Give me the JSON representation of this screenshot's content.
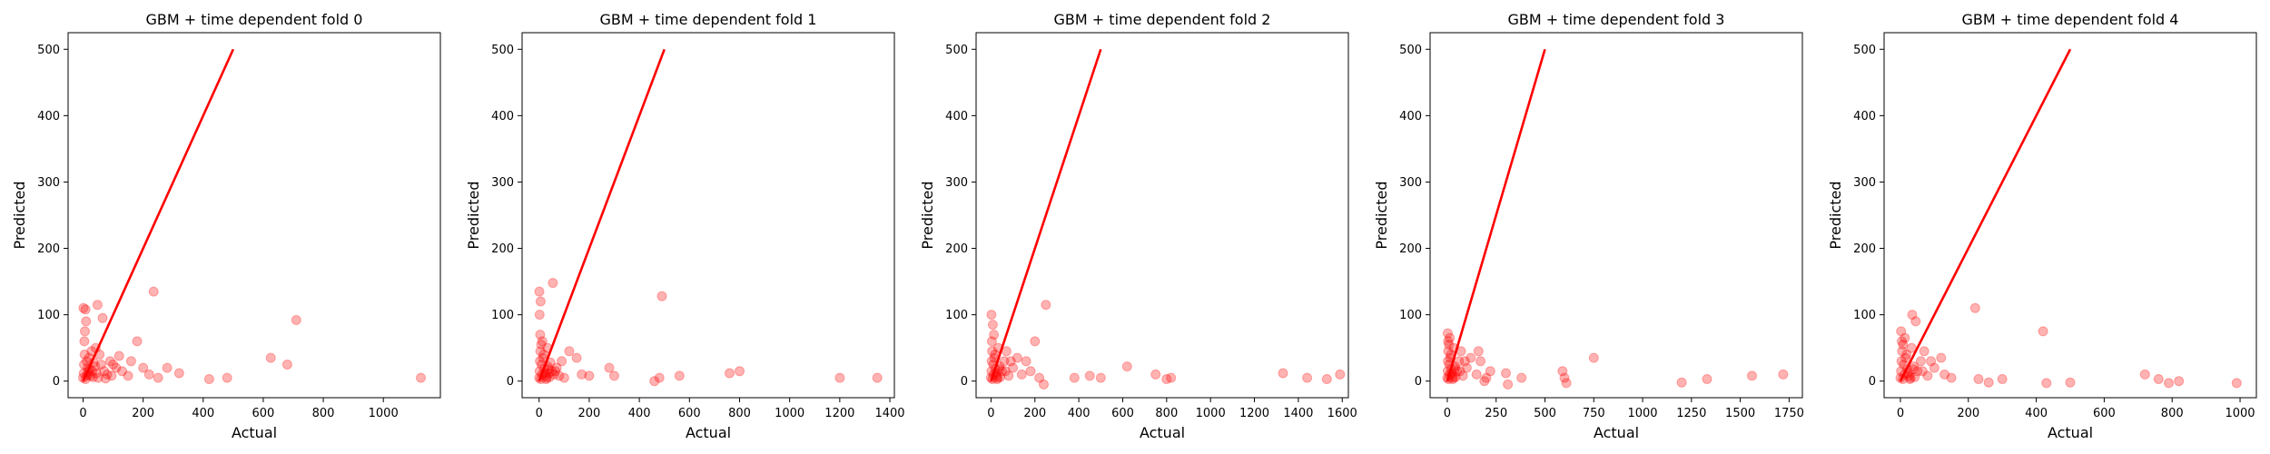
{
  "chart_data": [
    {
      "type": "scatter",
      "title": "GBM + time dependent fold 0",
      "xlabel": "Actual",
      "ylabel": "Predicted",
      "xlim": [
        -50,
        1190
      ],
      "ylim": [
        -25,
        525
      ],
      "xticks": [
        0,
        200,
        400,
        600,
        800,
        1000
      ],
      "yticks": [
        0,
        100,
        200,
        300,
        400,
        500
      ],
      "reference_line": [
        [
          0,
          0
        ],
        [
          500,
          500
        ]
      ],
      "color": "#ff0000",
      "series": [
        {
          "points": [
            [
              0,
              5
            ],
            [
              2,
              12
            ],
            [
              3,
              25
            ],
            [
              5,
              40
            ],
            [
              4,
              60
            ],
            [
              6,
              75
            ],
            [
              1,
              110
            ],
            [
              8,
              108
            ],
            [
              10,
              90
            ],
            [
              12,
              30
            ],
            [
              15,
              20
            ],
            [
              18,
              10
            ],
            [
              20,
              35
            ],
            [
              22,
              18
            ],
            [
              25,
              8
            ],
            [
              30,
              15
            ],
            [
              35,
              28
            ],
            [
              40,
              22
            ],
            [
              45,
              12
            ],
            [
              50,
              5
            ],
            [
              55,
              40
            ],
            [
              60,
              25
            ],
            [
              70,
              15
            ],
            [
              80,
              10
            ],
            [
              90,
              30
            ],
            [
              100,
              25
            ],
            [
              110,
              20
            ],
            [
              130,
              15
            ],
            [
              160,
              30
            ],
            [
              180,
              60
            ],
            [
              200,
              20
            ],
            [
              220,
              10
            ],
            [
              235,
              135
            ],
            [
              250,
              5
            ],
            [
              280,
              20
            ],
            [
              320,
              12
            ],
            [
              420,
              3
            ],
            [
              480,
              5
            ],
            [
              625,
              35
            ],
            [
              680,
              25
            ],
            [
              710,
              92
            ],
            [
              1125,
              5
            ],
            [
              8,
              3
            ],
            [
              12,
              8
            ],
            [
              16,
              14
            ],
            [
              28,
              45
            ],
            [
              33,
              6
            ],
            [
              42,
              50
            ],
            [
              48,
              115
            ],
            [
              65,
              95
            ],
            [
              75,
              4
            ],
            [
              95,
              8
            ],
            [
              120,
              38
            ],
            [
              150,
              8
            ]
          ]
        }
      ]
    },
    {
      "type": "scatter",
      "title": "GBM + time dependent fold 1",
      "xlabel": "Actual",
      "ylabel": "Predicted",
      "xlim": [
        -68,
        1418
      ],
      "ylim": [
        -25,
        525
      ],
      "xticks": [
        0,
        200,
        400,
        600,
        800,
        1000,
        1200,
        1400
      ],
      "yticks": [
        0,
        100,
        200,
        300,
        400,
        500
      ],
      "reference_line": [
        [
          0,
          0
        ],
        [
          500,
          500
        ]
      ],
      "color": "#ff0000",
      "series": [
        {
          "points": [
            [
              0,
              5
            ],
            [
              2,
              15
            ],
            [
              3,
              30
            ],
            [
              5,
              45
            ],
            [
              4,
              70
            ],
            [
              2,
              100
            ],
            [
              1,
              135
            ],
            [
              6,
              120
            ],
            [
              8,
              55
            ],
            [
              10,
              25
            ],
            [
              12,
              10
            ],
            [
              15,
              35
            ],
            [
              20,
              18
            ],
            [
              25,
              8
            ],
            [
              30,
              5
            ],
            [
              35,
              22
            ],
            [
              40,
              12
            ],
            [
              45,
              28
            ],
            [
              50,
              15
            ],
            [
              55,
              148
            ],
            [
              60,
              10
            ],
            [
              70,
              20
            ],
            [
              80,
              8
            ],
            [
              100,
              5
            ],
            [
              120,
              45
            ],
            [
              150,
              35
            ],
            [
              170,
              10
            ],
            [
              200,
              8
            ],
            [
              280,
              20
            ],
            [
              300,
              8
            ],
            [
              460,
              0
            ],
            [
              480,
              5
            ],
            [
              490,
              128
            ],
            [
              560,
              8
            ],
            [
              760,
              12
            ],
            [
              800,
              15
            ],
            [
              1200,
              5
            ],
            [
              1350,
              5
            ],
            [
              7,
              3
            ],
            [
              13,
              60
            ],
            [
              18,
              40
            ],
            [
              22,
              12
            ],
            [
              28,
              3
            ],
            [
              33,
              50
            ],
            [
              38,
              18
            ],
            [
              42,
              6
            ],
            [
              65,
              15
            ],
            [
              90,
              30
            ]
          ]
        }
      ]
    },
    {
      "type": "scatter",
      "title": "GBM + time dependent fold 2",
      "xlabel": "Actual",
      "ylabel": "Predicted",
      "xlim": [
        -68,
        1628
      ],
      "ylim": [
        -25,
        525
      ],
      "xticks": [
        0,
        200,
        400,
        600,
        800,
        1000,
        1200,
        1400,
        1600
      ],
      "yticks": [
        0,
        100,
        200,
        300,
        400,
        500
      ],
      "reference_line": [
        [
          0,
          0
        ],
        [
          500,
          500
        ]
      ],
      "color": "#ff0000",
      "series": [
        {
          "points": [
            [
              0,
              5
            ],
            [
              2,
              15
            ],
            [
              3,
              30
            ],
            [
              5,
              45
            ],
            [
              4,
              60
            ],
            [
              2,
              100
            ],
            [
              8,
              85
            ],
            [
              10,
              25
            ],
            [
              12,
              10
            ],
            [
              15,
              35
            ],
            [
              20,
              18
            ],
            [
              25,
              8
            ],
            [
              30,
              5
            ],
            [
              40,
              22
            ],
            [
              50,
              15
            ],
            [
              60,
              30
            ],
            [
              70,
              45
            ],
            [
              80,
              8
            ],
            [
              100,
              20
            ],
            [
              120,
              35
            ],
            [
              140,
              10
            ],
            [
              160,
              30
            ],
            [
              180,
              15
            ],
            [
              200,
              60
            ],
            [
              220,
              5
            ],
            [
              240,
              -5
            ],
            [
              250,
              115
            ],
            [
              380,
              5
            ],
            [
              450,
              8
            ],
            [
              500,
              5
            ],
            [
              620,
              22
            ],
            [
              750,
              10
            ],
            [
              800,
              3
            ],
            [
              820,
              5
            ],
            [
              1330,
              12
            ],
            [
              1440,
              5
            ],
            [
              1530,
              3
            ],
            [
              1590,
              10
            ],
            [
              7,
              3
            ],
            [
              13,
              70
            ],
            [
              18,
              40
            ],
            [
              22,
              12
            ],
            [
              28,
              3
            ],
            [
              33,
              50
            ],
            [
              38,
              18
            ],
            [
              42,
              6
            ],
            [
              65,
              15
            ],
            [
              90,
              30
            ]
          ]
        }
      ]
    },
    {
      "type": "scatter",
      "title": "GBM + time dependent fold 3",
      "xlabel": "Actual",
      "ylabel": "Predicted",
      "xlim": [
        -88,
        1818
      ],
      "ylim": [
        -25,
        525
      ],
      "xticks": [
        0,
        250,
        500,
        750,
        1000,
        1250,
        1500,
        1750
      ],
      "yticks": [
        0,
        100,
        200,
        300,
        400,
        500
      ],
      "reference_line": [
        [
          0,
          0
        ],
        [
          500,
          500
        ]
      ],
      "color": "#ff0000",
      "series": [
        {
          "points": [
            [
              0,
              5
            ],
            [
              2,
              15
            ],
            [
              3,
              30
            ],
            [
              5,
              45
            ],
            [
              4,
              60
            ],
            [
              2,
              72
            ],
            [
              8,
              55
            ],
            [
              10,
              25
            ],
            [
              12,
              10
            ],
            [
              15,
              35
            ],
            [
              20,
              18
            ],
            [
              25,
              8
            ],
            [
              30,
              5
            ],
            [
              40,
              22
            ],
            [
              50,
              15
            ],
            [
              60,
              30
            ],
            [
              70,
              45
            ],
            [
              80,
              8
            ],
            [
              100,
              20
            ],
            [
              120,
              35
            ],
            [
              150,
              10
            ],
            [
              170,
              30
            ],
            [
              200,
              5
            ],
            [
              220,
              15
            ],
            [
              300,
              12
            ],
            [
              310,
              -5
            ],
            [
              380,
              5
            ],
            [
              590,
              15
            ],
            [
              600,
              5
            ],
            [
              610,
              -3
            ],
            [
              750,
              35
            ],
            [
              1200,
              -2
            ],
            [
              1330,
              3
            ],
            [
              1560,
              8
            ],
            [
              1720,
              10
            ],
            [
              7,
              3
            ],
            [
              13,
              65
            ],
            [
              18,
              40
            ],
            [
              22,
              12
            ],
            [
              28,
              3
            ],
            [
              33,
              50
            ],
            [
              38,
              18
            ],
            [
              42,
              6
            ],
            [
              65,
              15
            ],
            [
              90,
              30
            ],
            [
              160,
              45
            ],
            [
              190,
              0
            ]
          ]
        }
      ]
    },
    {
      "type": "scatter",
      "title": "GBM + time dependent fold 4",
      "xlabel": "Actual",
      "ylabel": "Predicted",
      "xlim": [
        -48,
        1048
      ],
      "ylim": [
        -25,
        525
      ],
      "xticks": [
        0,
        200,
        400,
        600,
        800,
        1000
      ],
      "yticks": [
        0,
        100,
        200,
        300,
        400,
        500
      ],
      "reference_line": [
        [
          0,
          0
        ],
        [
          500,
          500
        ]
      ],
      "color": "#ff0000",
      "series": [
        {
          "points": [
            [
              0,
              5
            ],
            [
              2,
              15
            ],
            [
              3,
              30
            ],
            [
              5,
              45
            ],
            [
              4,
              60
            ],
            [
              2,
              75
            ],
            [
              8,
              55
            ],
            [
              10,
              25
            ],
            [
              12,
              10
            ],
            [
              15,
              35
            ],
            [
              20,
              18
            ],
            [
              25,
              8
            ],
            [
              30,
              5
            ],
            [
              35,
              100
            ],
            [
              40,
              22
            ],
            [
              45,
              90
            ],
            [
              50,
              15
            ],
            [
              60,
              30
            ],
            [
              70,
              45
            ],
            [
              80,
              8
            ],
            [
              100,
              20
            ],
            [
              120,
              35
            ],
            [
              130,
              10
            ],
            [
              150,
              5
            ],
            [
              220,
              110
            ],
            [
              230,
              3
            ],
            [
              260,
              -2
            ],
            [
              300,
              3
            ],
            [
              420,
              75
            ],
            [
              430,
              -3
            ],
            [
              500,
              -2
            ],
            [
              720,
              10
            ],
            [
              760,
              3
            ],
            [
              790,
              -3
            ],
            [
              820,
              0
            ],
            [
              990,
              -3
            ],
            [
              7,
              3
            ],
            [
              13,
              65
            ],
            [
              18,
              40
            ],
            [
              22,
              12
            ],
            [
              28,
              3
            ],
            [
              33,
              50
            ],
            [
              38,
              18
            ],
            [
              42,
              6
            ],
            [
              65,
              15
            ],
            [
              90,
              30
            ]
          ]
        }
      ]
    }
  ]
}
